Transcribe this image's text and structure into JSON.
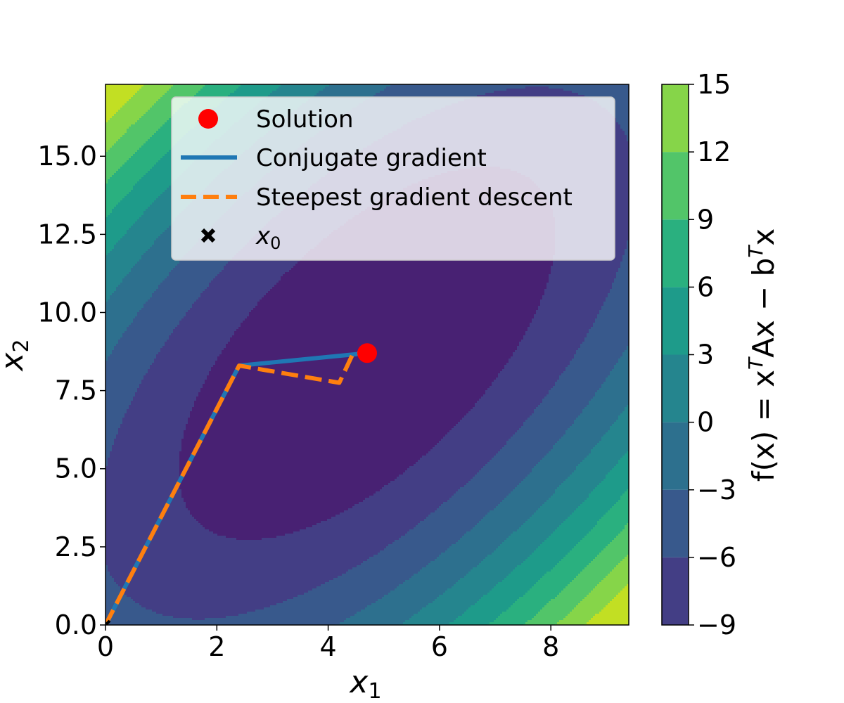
{
  "chart_data": {
    "type": "contour",
    "xlabel": "x",
    "xlabel_sub": "1",
    "ylabel": "x",
    "ylabel_sub": "2",
    "xlim": [
      0,
      9.4
    ],
    "ylim": [
      0,
      17.3
    ],
    "x_ticks": [
      0,
      2,
      4,
      6,
      8
    ],
    "x_tick_labels": [
      "0",
      "2",
      "4",
      "6",
      "8"
    ],
    "y_ticks": [
      0,
      2.5,
      5,
      7.5,
      10,
      12.5,
      15
    ],
    "y_tick_labels": [
      "0.0",
      "2.5",
      "5.0",
      "7.5",
      "10.0",
      "12.5",
      "15.0"
    ],
    "contour_levels": [
      -9,
      -6,
      -3,
      0,
      3,
      6,
      9,
      12,
      15
    ],
    "colorbar": {
      "ticks": [
        -9,
        -6,
        -3,
        0,
        3,
        6,
        9,
        12,
        15
      ],
      "tick_labels": [
        "−9",
        "−6",
        "−3",
        "0",
        "3",
        "6",
        "9",
        "12",
        "15"
      ],
      "label_pre": "f(x) = x",
      "label_sup": "T",
      "label_mid": "Ax − b",
      "label_sup2": "T",
      "label_post": "x",
      "colors": [
        "#482173",
        "#433e85",
        "#38598c",
        "#2d708e",
        "#25858e",
        "#1e9b8a",
        "#2ab07f",
        "#52c569",
        "#86d549",
        "#c2df23"
      ]
    },
    "solution": {
      "x": 4.7,
      "y": 8.7,
      "color": "#ff0000"
    },
    "series": [
      {
        "name": "Conjugate gradient",
        "style": "solid",
        "color": "#1f77b4",
        "x": [
          0,
          2.4,
          4.7
        ],
        "y": [
          0,
          8.3,
          8.7
        ]
      },
      {
        "name": "Steepest gradient descent",
        "style": "dashed",
        "color": "#ff7f0e",
        "x": [
          0,
          2.4,
          4.2,
          4.45,
          4.7
        ],
        "y": [
          0,
          8.3,
          7.75,
          8.7,
          8.7
        ]
      }
    ],
    "start_point": {
      "x": 0,
      "y": 0
    },
    "legend": {
      "placement": "top-center",
      "entries": [
        {
          "label": "Solution",
          "marker": "circle"
        },
        {
          "label": "Conjugate gradient",
          "marker": "line"
        },
        {
          "label": "Steepest gradient descent",
          "marker": "dashed-line"
        },
        {
          "label": "x",
          "label_sub": "0",
          "marker": "x"
        }
      ]
    }
  }
}
